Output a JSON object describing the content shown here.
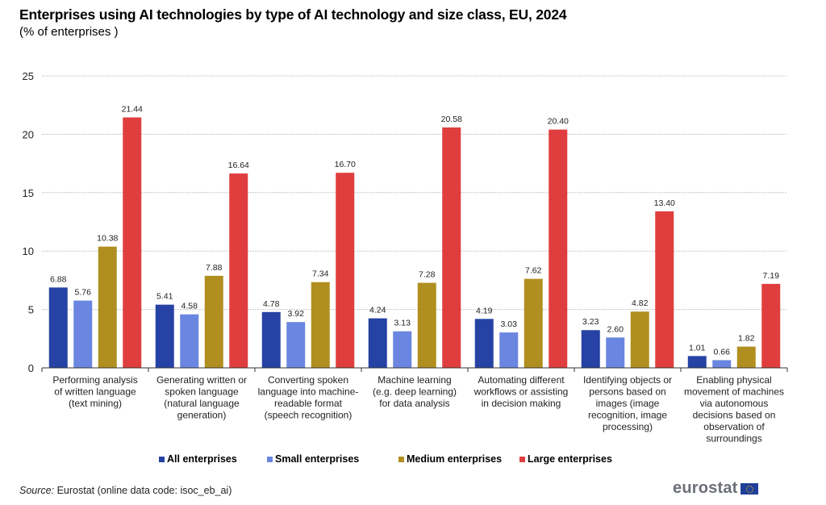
{
  "header": {
    "title": "Enterprises using AI technologies by type of AI technology and size class, EU, 2024",
    "subtitle": "(% of enterprises )"
  },
  "chart_data": {
    "type": "bar",
    "title": "Enterprises using AI technologies by type of AI technology and size class, EU, 2024",
    "subtitle": "(% of enterprises )",
    "xlabel": "",
    "ylabel": "",
    "ylim": [
      0,
      25
    ],
    "yticks": [
      0,
      5,
      10,
      15,
      20,
      25
    ],
    "grid": true,
    "legend_position": "bottom",
    "categories": [
      [
        "Performing analysis",
        "of written language",
        "(text mining)"
      ],
      [
        "Generating written or",
        "spoken language",
        "(natural language",
        "generation)"
      ],
      [
        "Converting spoken",
        "language into machine-",
        "readable format",
        "(speech recognition)"
      ],
      [
        "Machine learning",
        "(e.g. deep learning)",
        "for data analysis"
      ],
      [
        "Automating different",
        "workflows or assisting",
        "in decision making"
      ],
      [
        "Identifying objects or",
        "persons based on",
        "images (image",
        "recognition, image",
        "processing)"
      ],
      [
        "Enabling physical",
        "movement of machines",
        "via autonomous",
        "decisions based on",
        "observation of",
        "surroundings"
      ]
    ],
    "series": [
      {
        "name": "All enterprises",
        "color": "#2642a4",
        "values": [
          6.88,
          5.41,
          4.78,
          4.24,
          4.19,
          3.23,
          1.01
        ]
      },
      {
        "name": "Small enterprises",
        "color": "#6b86e0",
        "values": [
          5.76,
          4.58,
          3.92,
          3.13,
          3.03,
          2.6,
          0.66
        ]
      },
      {
        "name": "Medium enterprises",
        "color": "#b08f20",
        "values": [
          10.38,
          7.88,
          7.34,
          7.28,
          7.62,
          4.82,
          1.82
        ]
      },
      {
        "name": "Large enterprises",
        "color": "#e03e3e",
        "values": [
          21.44,
          16.64,
          16.7,
          20.58,
          20.4,
          13.4,
          7.19
        ]
      }
    ],
    "value_labels": [
      [
        "6.88",
        "5.41",
        "4.78",
        "4.24",
        "4.19",
        "3.23",
        "1.01"
      ],
      [
        "5.76",
        "4.58",
        "3.92",
        "3.13",
        "3.03",
        "2.60",
        "0.66"
      ],
      [
        "10.38",
        "7.88",
        "7.34",
        "7.28",
        "7.62",
        "4.82",
        "1.82"
      ],
      [
        "21.44",
        "16.64",
        "16.70",
        "20.58",
        "20.40",
        "13.40",
        "7.19"
      ]
    ]
  },
  "legend": {
    "items": [
      {
        "label": "All enterprises",
        "color": "#2642a4"
      },
      {
        "label": "Small enterprises",
        "color": "#6b86e0"
      },
      {
        "label": "Medium enterprises",
        "color": "#b08f20"
      },
      {
        "label": "Large enterprises",
        "color": "#e03e3e"
      }
    ]
  },
  "footer": {
    "source_label": "Source:",
    "source_text": " Eurostat (online data code: isoc_eb_ai)",
    "logo_text": "eurostat"
  }
}
